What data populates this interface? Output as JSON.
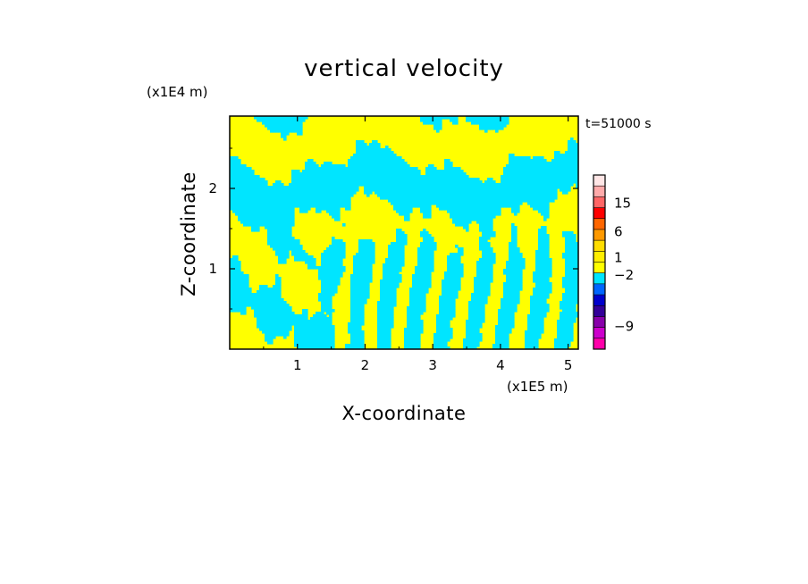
{
  "chart_data": {
    "type": "heatmap",
    "title": "vertical velocity",
    "xlabel": "X-coordinate",
    "ylabel": "Z-coordinate",
    "x_unit": "(x1E5 m)",
    "y_unit": "(x1E4 m)",
    "time_label": "t=51000 s",
    "xlim": [
      0,
      5.15
    ],
    "ylim": [
      0,
      2.9
    ],
    "x_ticks": [
      1,
      2,
      3,
      4,
      5
    ],
    "x_tick_labels": [
      "1",
      "2",
      "3",
      "4",
      "5"
    ],
    "y_ticks": [
      1,
      2
    ],
    "y_tick_labels": [
      "1",
      "2"
    ],
    "field_description": "Vertical velocity field dominated by two contour levels: weak positive (yellow) and weak negative (cyan) bands, with near-vertical striations in the lower half for x between 1.5 and 5 and horizontal bands near z = 2.",
    "colorbar": {
      "levels": [
        {
          "color": "#ff00aa"
        },
        {
          "color": "#cc00cc"
        },
        {
          "color": "#8800aa"
        },
        {
          "color": "#330099"
        },
        {
          "color": "#0000cc"
        },
        {
          "color": "#0066ff"
        },
        {
          "color": "#00e5ff"
        },
        {
          "color": "#ffff00"
        },
        {
          "color": "#ffee00"
        },
        {
          "color": "#ffdd00"
        },
        {
          "color": "#ff9900"
        },
        {
          "color": "#ff6600"
        },
        {
          "color": "#ff0000"
        },
        {
          "color": "#ff6666"
        },
        {
          "color": "#ffaaaa"
        },
        {
          "color": "#ffe6e6"
        }
      ],
      "labels": [
        {
          "text": "15",
          "at": 13.4
        },
        {
          "text": "6",
          "at": 10.8
        },
        {
          "text": "1",
          "at": 8.4
        },
        {
          "text": "−2",
          "at": 6.8
        },
        {
          "text": "−9",
          "at": 2.1
        }
      ]
    },
    "colors": {
      "positive": "#ffff00",
      "negative": "#00e5ff",
      "frame": "#000000"
    }
  }
}
